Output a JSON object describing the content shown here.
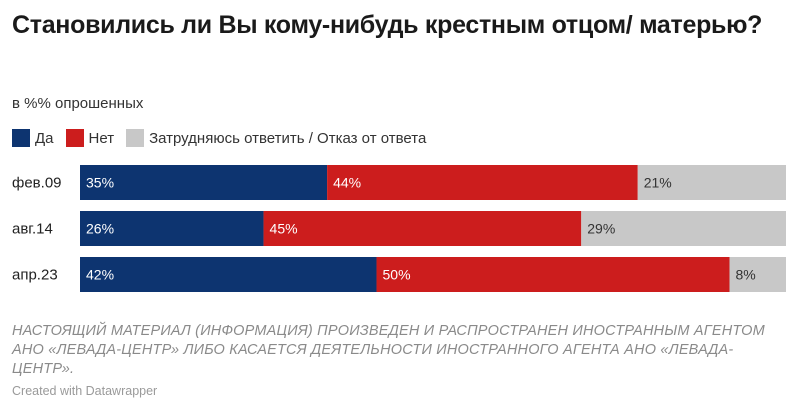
{
  "title": "Становились ли Вы кому-нибудь крестным отцом/ матерью?",
  "subtitle": "в %% опрошенных",
  "legend": [
    {
      "label": "Да",
      "color": "#0d3470"
    },
    {
      "label": "Нет",
      "color": "#cc1d1d"
    },
    {
      "label": "Затрудняюсь ответить / Отказ от ответа",
      "color": "#c8c8c8"
    }
  ],
  "chart_data": {
    "type": "bar",
    "orientation": "horizontal",
    "stacked": true,
    "categories": [
      "фев.09",
      "авг.14",
      "апр.23"
    ],
    "series": [
      {
        "name": "Да",
        "values": [
          35,
          26,
          42
        ],
        "color": "#0d3470"
      },
      {
        "name": "Нет",
        "values": [
          44,
          45,
          50
        ],
        "color": "#cc1d1d"
      },
      {
        "name": "Затрудняюсь ответить / Отказ от ответа",
        "values": [
          21,
          29,
          8
        ],
        "color": "#c8c8c8"
      }
    ],
    "value_suffix": "%",
    "xlim": [
      0,
      100
    ],
    "legend_position": "top-left",
    "grid": false
  },
  "note": "НАСТОЯЩИЙ МАТЕРИАЛ (ИНФОРМАЦИЯ) ПРОИЗВЕДЕН И РАСПРОСТРАНЕН ИНОСТРАННЫМ АГЕНТОМ АНО «ЛЕВАДА-ЦЕНТР» ЛИБО КАСАЕТСЯ ДЕЯТЕЛЬНОСТИ ИНОСТРАННОГО АГЕНТА АНО «ЛЕВАДА-ЦЕНТР».",
  "credit": "Created with Datawrapper"
}
